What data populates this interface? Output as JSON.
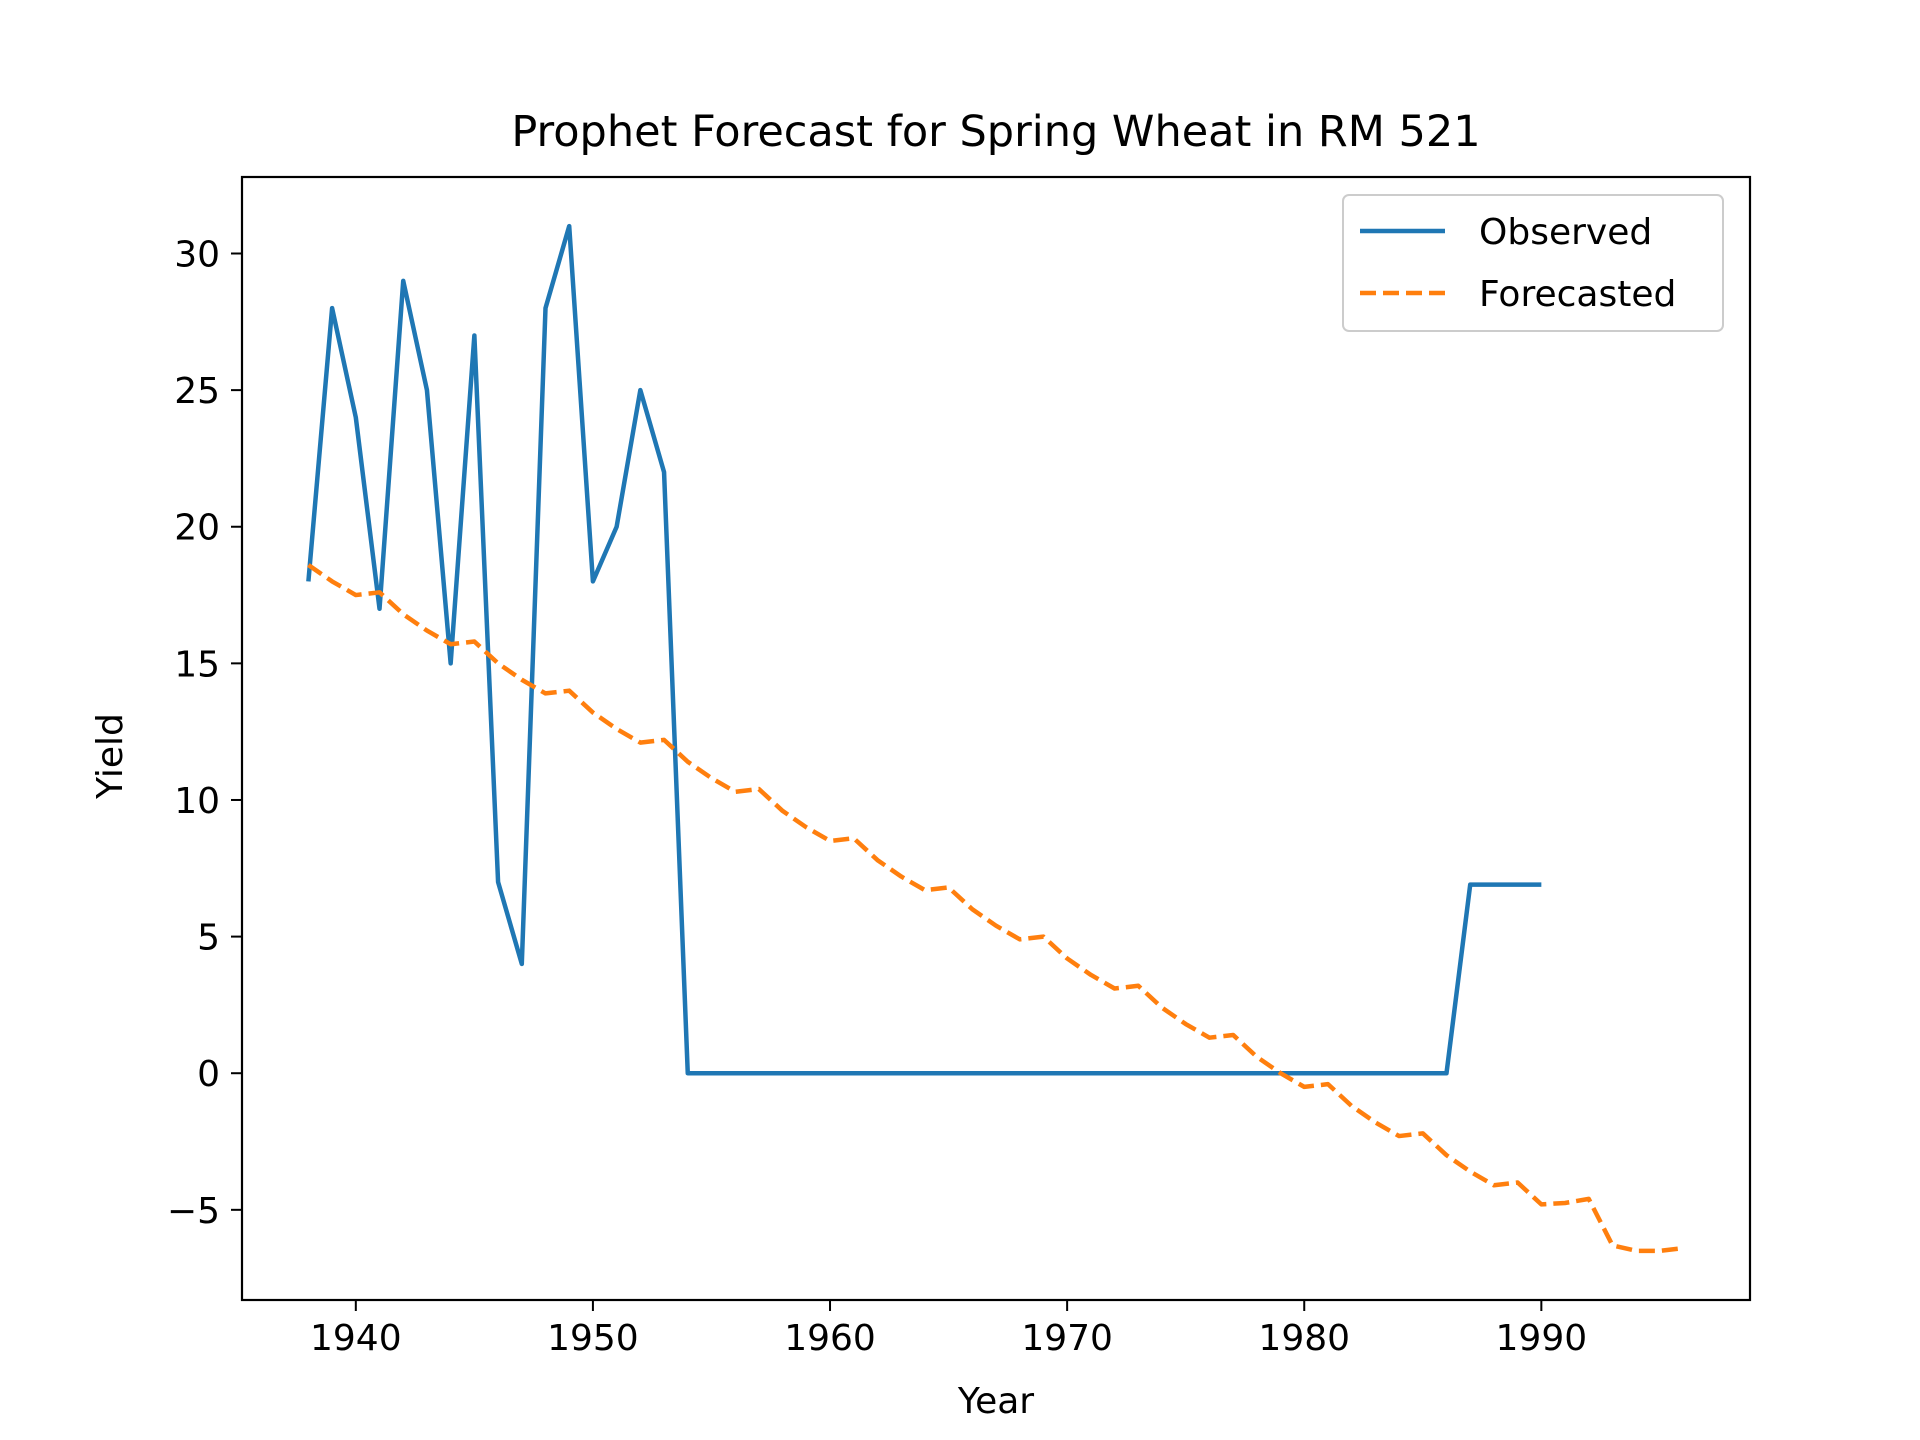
{
  "chart_data": {
    "type": "line",
    "title": "Prophet Forecast for Spring Wheat in RM 521",
    "xlabel": "Year",
    "ylabel": "Yield",
    "xlim": [
      1935.2,
      1998.8
    ],
    "ylim": [
      -8.3,
      32.8
    ],
    "xticks": [
      1940,
      1950,
      1960,
      1970,
      1980,
      1990
    ],
    "yticks": [
      -5,
      0,
      5,
      10,
      15,
      20,
      25,
      30
    ],
    "grid": false,
    "legend_position": "upper right",
    "series": [
      {
        "name": "Observed",
        "color": "#1f77b4",
        "linestyle": "solid",
        "x": [
          1938,
          1939,
          1940,
          1941,
          1942,
          1943,
          1944,
          1945,
          1946,
          1947,
          1948,
          1949,
          1950,
          1951,
          1952,
          1953,
          1954,
          1955,
          1956,
          1957,
          1958,
          1959,
          1960,
          1961,
          1962,
          1963,
          1964,
          1965,
          1966,
          1967,
          1968,
          1969,
          1970,
          1971,
          1972,
          1973,
          1974,
          1975,
          1976,
          1977,
          1978,
          1979,
          1980,
          1981,
          1982,
          1983,
          1984,
          1985,
          1986,
          1987,
          1988,
          1989,
          1990
        ],
        "y": [
          18,
          28,
          24,
          17,
          29,
          25,
          15,
          27,
          7,
          4,
          28,
          31,
          18,
          20,
          25,
          22,
          0,
          0,
          0,
          0,
          0,
          0,
          0,
          0,
          0,
          0,
          0,
          0,
          0,
          0,
          0,
          0,
          0,
          0,
          0,
          0,
          0,
          0,
          0,
          0,
          0,
          0,
          0,
          0,
          0,
          0,
          0,
          0,
          0,
          6.9,
          6.9,
          6.9,
          6.9
        ]
      },
      {
        "name": "Forecasted",
        "color": "#ff7f0e",
        "linestyle": "dashed",
        "x": [
          1938,
          1939,
          1940,
          1941,
          1942,
          1943,
          1944,
          1945,
          1946,
          1947,
          1948,
          1949,
          1950,
          1951,
          1952,
          1953,
          1954,
          1955,
          1956,
          1957,
          1958,
          1959,
          1960,
          1961,
          1962,
          1963,
          1964,
          1965,
          1966,
          1967,
          1968,
          1969,
          1970,
          1971,
          1972,
          1973,
          1974,
          1975,
          1976,
          1977,
          1978,
          1979,
          1980,
          1981,
          1982,
          1983,
          1984,
          1985,
          1986,
          1987,
          1988,
          1989,
          1990,
          1991,
          1992,
          1993,
          1994,
          1995,
          1996
        ],
        "y": [
          18.6,
          18.0,
          17.5,
          17.6,
          16.8,
          16.2,
          15.7,
          15.8,
          15.0,
          14.4,
          13.9,
          14.0,
          13.2,
          12.6,
          12.1,
          12.2,
          11.4,
          10.8,
          10.3,
          10.4,
          9.6,
          9.0,
          8.5,
          8.6,
          7.8,
          7.2,
          6.7,
          6.8,
          6.0,
          5.4,
          4.9,
          5.0,
          4.2,
          3.6,
          3.1,
          3.2,
          2.4,
          1.8,
          1.3,
          1.4,
          0.6,
          0.0,
          -0.5,
          -0.4,
          -1.2,
          -1.8,
          -2.3,
          -2.2,
          -3.0,
          -3.6,
          -4.1,
          -4.0,
          -4.8,
          -4.75,
          -4.6,
          -6.3,
          -6.5,
          -6.5,
          -6.4
        ]
      }
    ]
  }
}
